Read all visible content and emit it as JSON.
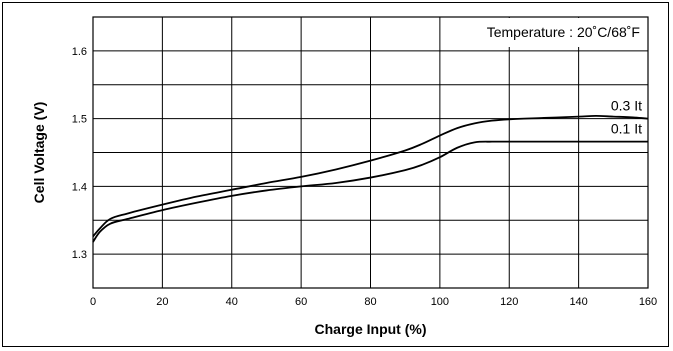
{
  "chart_data": {
    "type": "line",
    "title": "",
    "xlabel": "Charge Input (%)",
    "ylabel": "Cell Voltage (V)",
    "xlim": [
      0,
      160
    ],
    "ylim": [
      1.25,
      1.65
    ],
    "x_ticks": [
      0,
      20,
      40,
      60,
      80,
      100,
      120,
      140,
      160
    ],
    "x_tick_labels": [
      "0",
      "20",
      "40",
      "60",
      "80",
      "100",
      "120",
      "140",
      "160"
    ],
    "y_ticks": [
      1.3,
      1.4,
      1.5,
      1.6
    ],
    "y_tick_labels": [
      "1.3",
      "1.4",
      "1.5",
      "1.6"
    ],
    "grid": true,
    "annotation": "Temperature : 20˚C/68˚F",
    "series": [
      {
        "name": "0.3 It",
        "x": [
          0,
          2,
          5,
          10,
          20,
          30,
          40,
          50,
          60,
          70,
          80,
          90,
          95,
          100,
          105,
          110,
          115,
          120,
          130,
          140,
          145,
          150,
          155,
          160
        ],
        "y": [
          1.326,
          1.338,
          1.352,
          1.36,
          1.373,
          1.385,
          1.395,
          1.405,
          1.414,
          1.425,
          1.438,
          1.453,
          1.463,
          1.475,
          1.486,
          1.493,
          1.497,
          1.499,
          1.501,
          1.503,
          1.504,
          1.503,
          1.502,
          1.5
        ]
      },
      {
        "name": "0.1 It",
        "x": [
          0,
          2,
          5,
          10,
          20,
          30,
          40,
          50,
          60,
          70,
          80,
          90,
          95,
          100,
          105,
          110,
          115,
          120,
          130,
          140,
          150,
          160
        ],
        "y": [
          1.318,
          1.333,
          1.345,
          1.352,
          1.365,
          1.376,
          1.386,
          1.394,
          1.4,
          1.405,
          1.413,
          1.424,
          1.432,
          1.443,
          1.457,
          1.465,
          1.466,
          1.466,
          1.466,
          1.466,
          1.466,
          1.466
        ]
      }
    ]
  }
}
